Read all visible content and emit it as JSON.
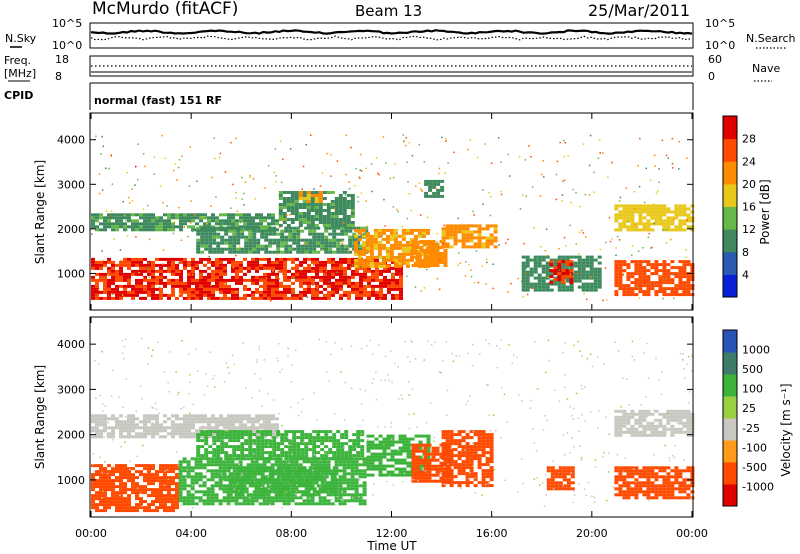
{
  "header": {
    "station": "McMurdo (fitACF)",
    "beam": "Beam 13",
    "date": "25/Mar/2011"
  },
  "summary_panels": {
    "left_labels": {
      "nsky": "N.Sky",
      "freq": "Freq.",
      "freq_unit": "[MHz]",
      "cpid": "CPID"
    },
    "right_labels": {
      "nsearch": "N.Search",
      "nave": "Nave"
    },
    "noise_ticks_left": [
      "10^5",
      "10^0"
    ],
    "noise_ticks_right": [
      "10^5",
      "10^0"
    ],
    "freq_ticks": [
      "18",
      "8"
    ],
    "nave_ticks": [
      "60",
      "0"
    ],
    "cpid_text": "normal (fast) 151 RF"
  },
  "colors": {
    "power_scale": [
      "#0a1fd8",
      "#2a5bb0",
      "#3e8a5e",
      "#66b84a",
      "#e8c81a",
      "#ff8c00",
      "#ff4a00",
      "#e00000"
    ],
    "velocity_scale": [
      "#e00000",
      "#ff4a00",
      "#ff9a1a",
      "#c8c8c0",
      "#9ad040",
      "#3cb43c",
      "#3e7c6a",
      "#2a54b8"
    ]
  },
  "chart_data": [
    {
      "type": "heatmap",
      "panel": "power",
      "ylabel": "Slant Range [km]",
      "xlabel": "",
      "yticks": [
        "4000",
        "3000",
        "2000",
        "1000"
      ],
      "ylim": [
        180,
        4600
      ],
      "xlim": [
        0,
        24
      ],
      "colorbar": {
        "label": "Power [dB]",
        "ticks": [
          "28",
          "24",
          "20",
          "16",
          "12",
          "8",
          "4"
        ],
        "range": [
          0,
          30
        ]
      },
      "regions": [
        {
          "x": [
            0.0,
            12.3
          ],
          "y": [
            450,
            1350
          ],
          "value": 28
        },
        {
          "x": [
            0.0,
            7.5
          ],
          "y": [
            1950,
            2350
          ],
          "value": 10
        },
        {
          "x": [
            4.2,
            11.0
          ],
          "y": [
            1500,
            2050
          ],
          "value": 10
        },
        {
          "x": [
            7.5,
            10.5
          ],
          "y": [
            2050,
            2850
          ],
          "value": 10
        },
        {
          "x": [
            8.3,
            9.2
          ],
          "y": [
            2600,
            2850
          ],
          "value": 20
        },
        {
          "x": [
            10.5,
            13.5
          ],
          "y": [
            1150,
            2000
          ],
          "value": 20
        },
        {
          "x": [
            12.8,
            14.2
          ],
          "y": [
            1150,
            1750
          ],
          "value": 22
        },
        {
          "x": [
            14.0,
            16.2
          ],
          "y": [
            1600,
            2100
          ],
          "value": 20
        },
        {
          "x": [
            13.3,
            14.0
          ],
          "y": [
            2750,
            3100
          ],
          "value": 8
        },
        {
          "x": [
            17.2,
            20.3
          ],
          "y": [
            600,
            1400
          ],
          "value": 8
        },
        {
          "x": [
            18.3,
            19.1
          ],
          "y": [
            800,
            1300
          ],
          "value": 28
        },
        {
          "x": [
            20.9,
            24.0
          ],
          "y": [
            500,
            1300
          ],
          "value": 26
        },
        {
          "x": [
            20.9,
            24.0
          ],
          "y": [
            2000,
            2550
          ],
          "value": 18
        }
      ]
    },
    {
      "type": "heatmap",
      "panel": "velocity",
      "ylabel": "Slant Range [km]",
      "xlabel": "Time UT",
      "xticks": [
        "00:00",
        "04:00",
        "08:00",
        "12:00",
        "16:00",
        "20:00",
        "00:00"
      ],
      "yticks": [
        "4000",
        "3000",
        "2000",
        "1000"
      ],
      "ylim": [
        180,
        4600
      ],
      "xlim": [
        0,
        24
      ],
      "colorbar": {
        "label": "Velocity [m s⁻¹]",
        "ticks": [
          "1000",
          "500",
          "100",
          "25",
          "-25",
          "-100",
          "-500",
          "-1000"
        ]
      },
      "regions": [
        {
          "x": [
            0.0,
            3.5
          ],
          "y": [
            300,
            1350
          ],
          "value": -300
        },
        {
          "x": [
            3.5,
            11.0
          ],
          "y": [
            450,
            1500
          ],
          "value": 300
        },
        {
          "x": [
            5.5,
            9.8
          ],
          "y": [
            700,
            1300
          ],
          "value": 400
        },
        {
          "x": [
            0.0,
            7.5
          ],
          "y": [
            1950,
            2450
          ],
          "value": 0
        },
        {
          "x": [
            4.2,
            10.8
          ],
          "y": [
            1500,
            2100
          ],
          "value": 100
        },
        {
          "x": [
            11.0,
            13.5
          ],
          "y": [
            1100,
            2000
          ],
          "value": 150
        },
        {
          "x": [
            12.8,
            14.3
          ],
          "y": [
            1000,
            1800
          ],
          "value": -200
        },
        {
          "x": [
            14.0,
            16.0
          ],
          "y": [
            900,
            2100
          ],
          "value": -250
        },
        {
          "x": [
            18.2,
            19.2
          ],
          "y": [
            800,
            1300
          ],
          "value": -300
        },
        {
          "x": [
            20.9,
            24.0
          ],
          "y": [
            600,
            1300
          ],
          "value": -200
        },
        {
          "x": [
            20.9,
            24.0
          ],
          "y": [
            2000,
            2550
          ],
          "value": 0
        }
      ]
    }
  ]
}
